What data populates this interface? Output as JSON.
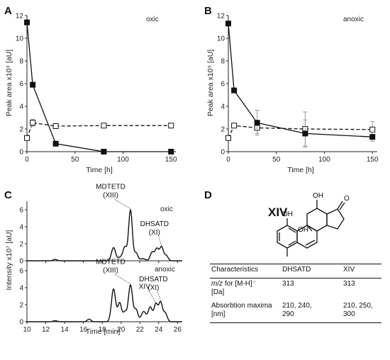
{
  "panels": {
    "A": {
      "letter": "A",
      "condition": "oxic",
      "ylabel": "Peak area x10⁹ [aU]",
      "xlabel": "Time [h]"
    },
    "B": {
      "letter": "B",
      "condition": "anoxic",
      "ylabel": "Peak area x10⁹ [aU]",
      "xlabel": "Time [h]"
    },
    "C": {
      "letter": "C",
      "condition_top": "oxic",
      "condition_bottom": "anoxic",
      "ylabel": "Intensity x10⁷ [aU]",
      "xlabel": "Time [min]"
    },
    "D": {
      "letter": "D",
      "compound": "XIV"
    }
  },
  "structure": {
    "atoms": [
      "OH",
      "OH",
      "OH",
      "O"
    ]
  },
  "table": {
    "headers": [
      "Characteristics",
      "DHSATD",
      "XIV"
    ],
    "rows": [
      {
        "c1_italic": "m/z",
        "c1_rest": " for [M-H]⁻",
        "c1_line2": "[Da]",
        "c2": "313",
        "c3": "313"
      },
      {
        "c1": "Absorbtion maxima",
        "c1_line2": "[nm]",
        "c2": "210, 240,",
        "c2_line2": "290",
        "c3": "210, 250,",
        "c3_line2": "300"
      }
    ]
  },
  "chart_data": [
    {
      "panel": "A",
      "type": "line",
      "title": "",
      "xlabel": "Time [h]",
      "ylabel": "Peak area x10⁹ [aU]",
      "xlim": [
        0,
        155
      ],
      "ylim": [
        0,
        12
      ],
      "xticks": [
        0,
        50,
        100,
        150
      ],
      "yticks": [
        0,
        2,
        4,
        6,
        8,
        10,
        12
      ],
      "grid": false,
      "series": [
        {
          "marker": "filled-square",
          "line": "solid",
          "x": [
            0,
            6,
            30,
            80,
            150
          ],
          "y": [
            11.4,
            5.9,
            0.7,
            0.0,
            0.0
          ],
          "yerr": [
            0,
            0,
            0,
            0,
            0
          ]
        },
        {
          "marker": "open-square",
          "line": "dashed",
          "x": [
            0,
            6,
            30,
            80,
            150
          ],
          "y": [
            1.2,
            2.55,
            2.25,
            2.3,
            2.3
          ],
          "yerr": [
            0,
            0.3,
            0,
            0,
            0
          ]
        }
      ]
    },
    {
      "panel": "B",
      "type": "line",
      "title": "",
      "xlabel": "Time [h]",
      "ylabel": "Peak area x10⁹ [aU]",
      "xlim": [
        0,
        155
      ],
      "ylim": [
        0,
        12
      ],
      "xticks": [
        0,
        50,
        100,
        150
      ],
      "yticks": [
        0,
        2,
        4,
        6,
        8,
        10,
        12
      ],
      "grid": false,
      "series": [
        {
          "marker": "filled-square",
          "line": "solid",
          "x": [
            0,
            6,
            30,
            80,
            150
          ],
          "y": [
            11.3,
            5.4,
            2.55,
            1.6,
            1.3
          ],
          "yerr": [
            0,
            0,
            1.1,
            1.2,
            0.4
          ]
        },
        {
          "marker": "open-square",
          "line": "dashed",
          "x": [
            0,
            6,
            30,
            80,
            150
          ],
          "y": [
            1.2,
            2.3,
            2.1,
            2.0,
            1.95
          ],
          "yerr": [
            0,
            0,
            0.5,
            1.5,
            0.7
          ]
        }
      ]
    },
    {
      "panel": "C-oxic",
      "type": "line",
      "title": "",
      "xlabel": "Time [min]",
      "ylabel": "Intensity x10⁷ [aU]",
      "xlim": [
        10,
        26.5
      ],
      "ylim": [
        0,
        7
      ],
      "xticks": [
        10,
        12,
        14,
        16,
        18,
        20,
        22,
        24,
        26
      ],
      "yticks": [
        0,
        2,
        4,
        6
      ],
      "peaks": [
        {
          "t": 13.0,
          "h": 0.15,
          "w": 0.22
        },
        {
          "t": 19.2,
          "h": 1.55,
          "w": 0.22
        },
        {
          "t": 19.9,
          "h": 0.4,
          "w": 0.22
        },
        {
          "t": 20.4,
          "h": 1.6,
          "w": 0.2
        },
        {
          "t": 21.0,
          "h": 5.95,
          "w": 0.2
        },
        {
          "t": 21.6,
          "h": 0.9,
          "w": 0.18
        },
        {
          "t": 22.3,
          "h": 0.25,
          "w": 0.3
        },
        {
          "t": 23.3,
          "h": 1.0,
          "w": 0.2
        },
        {
          "t": 23.8,
          "h": 1.4,
          "w": 0.2
        },
        {
          "t": 24.3,
          "h": 1.6,
          "w": 0.2
        },
        {
          "t": 24.8,
          "h": 0.6,
          "w": 0.2
        }
      ],
      "annotations": [
        {
          "text": [
            "MDTETD",
            "(XIII)"
          ],
          "t": 21.0,
          "y": 5.95
        },
        {
          "text": [
            "DHSATD",
            "(XI)"
          ],
          "t": 24.3,
          "y": 1.6
        }
      ]
    },
    {
      "panel": "C-anoxic",
      "type": "line",
      "title": "",
      "xlabel": "Time [min]",
      "ylabel": "Intensity x10⁷ [aU]",
      "xlim": [
        10,
        26.5
      ],
      "ylim": [
        0,
        7
      ],
      "xticks": [
        10,
        12,
        14,
        16,
        18,
        20,
        22,
        24,
        26
      ],
      "yticks": [
        0,
        2,
        4,
        6
      ],
      "peaks": [
        {
          "t": 13.0,
          "h": 0.12,
          "w": 0.22
        },
        {
          "t": 16.6,
          "h": 0.3,
          "w": 0.2
        },
        {
          "t": 19.2,
          "h": 3.85,
          "w": 0.22
        },
        {
          "t": 19.85,
          "h": 2.2,
          "w": 0.2
        },
        {
          "t": 20.4,
          "h": 1.1,
          "w": 0.2
        },
        {
          "t": 21.0,
          "h": 4.3,
          "w": 0.22
        },
        {
          "t": 21.6,
          "h": 1.4,
          "w": 0.2
        },
        {
          "t": 22.4,
          "h": 1.2,
          "w": 0.25
        },
        {
          "t": 23.1,
          "h": 1.7,
          "w": 0.22
        },
        {
          "t": 23.7,
          "h": 2.05,
          "w": 0.2
        },
        {
          "t": 24.2,
          "h": 2.25,
          "w": 0.2
        },
        {
          "t": 24.7,
          "h": 1.0,
          "w": 0.2
        }
      ],
      "annotations": [
        {
          "text": [
            "MDTETD",
            "(XIII)"
          ],
          "t": 21.0,
          "y": 4.3
        },
        {
          "text": [
            "XIV"
          ],
          "t": 23.7,
          "y": 2.05
        },
        {
          "text": [
            "DHSATD",
            "(XI)"
          ],
          "t": 24.2,
          "y": 2.25
        }
      ]
    }
  ]
}
